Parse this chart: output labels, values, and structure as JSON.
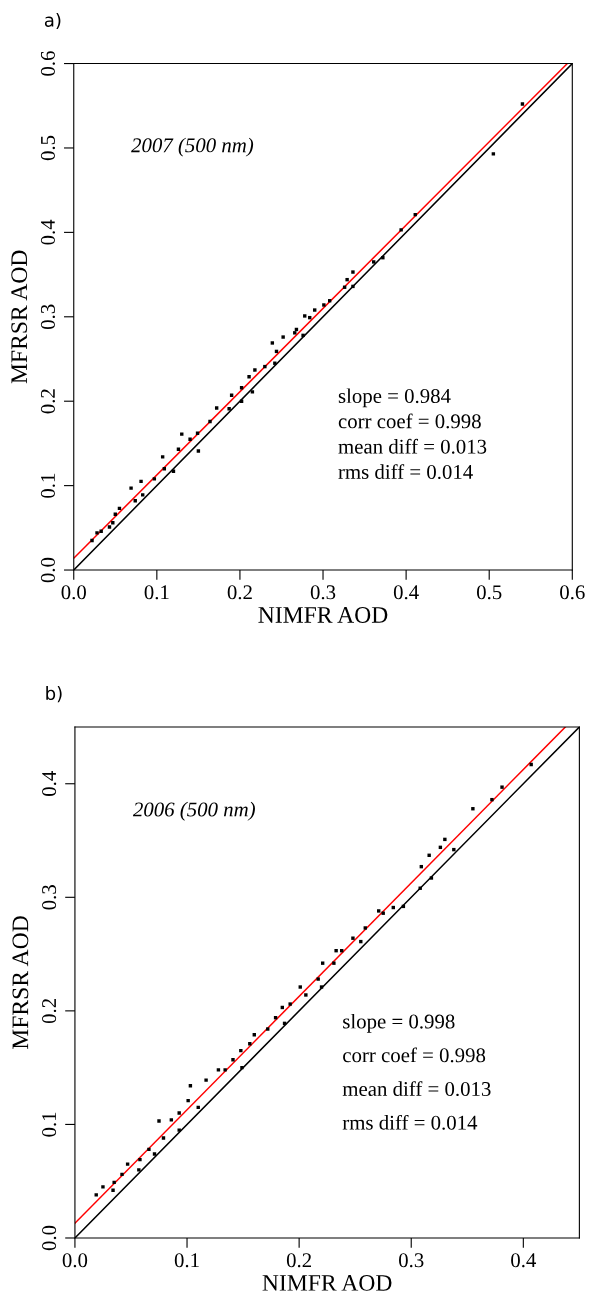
{
  "chart_data": [
    {
      "type": "scatter",
      "title": "a)",
      "xlabel": "NIMFR AOD",
      "ylabel": "MFRSR AOD",
      "xlim": [
        0,
        0.6
      ],
      "ylim": [
        0,
        0.6
      ],
      "xticks": [
        {
          "value": 0,
          "label": "0.0"
        },
        0.1,
        0.2,
        0.3,
        0.4,
        0.5,
        0.6
      ],
      "yticks": [
        {
          "value": 0,
          "label": "0.0"
        },
        0.1,
        0.2,
        0.3,
        0.4,
        0.5,
        0.6
      ],
      "grid": false,
      "legend": false,
      "annotations": [
        "2007 (500 nm)",
        "slope = 0.984",
        "corr coef = 0.998",
        "mean diff = 0.013",
        "rms diff = 0.014"
      ],
      "series": [
        {
          "color": "#000000",
          "marker": "square",
          "x": [
            0.54,
            0.505,
            0.411,
            0.394,
            0.372,
            0.361,
            0.336,
            0.329,
            0.336,
            0.326,
            0.308,
            0.301,
            0.29,
            0.284,
            0.278,
            0.276,
            0.268,
            0.266,
            0.252,
            0.239,
            0.244,
            0.242,
            0.23,
            0.218,
            0.211,
            0.215,
            0.202,
            0.19,
            0.202,
            0.187,
            0.172,
            0.164,
            0.149,
            0.14,
            0.13,
            0.15,
            0.126,
            0.12,
            0.107,
            0.109,
            0.097,
            0.081,
            0.069,
            0.083,
            0.074,
            0.055,
            0.05,
            0.047,
            0.043,
            0.033,
            0.022,
            0.028
          ],
          "values": [
            0.552,
            0.493,
            0.421,
            0.403,
            0.37,
            0.365,
            0.353,
            0.344,
            0.336,
            0.335,
            0.319,
            0.314,
            0.308,
            0.299,
            0.301,
            0.278,
            0.285,
            0.281,
            0.276,
            0.269,
            0.259,
            0.245,
            0.241,
            0.237,
            0.229,
            0.211,
            0.216,
            0.207,
            0.2,
            0.191,
            0.192,
            0.176,
            0.162,
            0.155,
            0.161,
            0.141,
            0.143,
            0.117,
            0.134,
            0.12,
            0.108,
            0.105,
            0.097,
            0.089,
            0.082,
            0.073,
            0.066,
            0.056,
            0.051,
            0.046,
            0.035,
            0.044
          ]
        },
        {
          "type": "line",
          "color": "#ff0000",
          "x": [
            0,
            0.594
          ],
          "values": [
            0.014,
            0.6
          ]
        },
        {
          "type": "line",
          "color": "#000000",
          "x": [
            0,
            0.6
          ],
          "values": [
            0,
            0.6
          ]
        }
      ]
    },
    {
      "type": "scatter",
      "title": "b)",
      "xlabel": "NIMFR AOD",
      "ylabel": "MFRSR AOD",
      "xlim": [
        0,
        0.45
      ],
      "ylim": [
        0,
        0.45
      ],
      "xticks": [
        {
          "value": 0,
          "label": "0.0"
        },
        0.1,
        0.2,
        0.3,
        0.4
      ],
      "yticks": [
        {
          "value": 0,
          "label": "0.0"
        },
        0.1,
        0.2,
        0.3,
        0.4
      ],
      "grid": false,
      "legend": false,
      "annotations": [
        "2006 (500 nm)",
        "slope = 0.998",
        "corr coef = 0.998",
        "mean diff = 0.013",
        "rms diff = 0.014"
      ],
      "series": [
        {
          "color": "#000000",
          "marker": "square",
          "x": [
            0.407,
            0.381,
            0.372,
            0.355,
            0.338,
            0.33,
            0.326,
            0.318,
            0.316,
            0.309,
            0.308,
            0.293,
            0.284,
            0.275,
            0.271,
            0.259,
            0.255,
            0.248,
            0.238,
            0.233,
            0.231,
            0.221,
            0.22,
            0.217,
            0.206,
            0.201,
            0.192,
            0.187,
            0.185,
            0.179,
            0.172,
            0.16,
            0.156,
            0.148,
            0.149,
            0.141,
            0.134,
            0.128,
            0.117,
            0.103,
            0.11,
            0.101,
            0.093,
            0.093,
            0.086,
            0.075,
            0.079,
            0.071,
            0.066,
            0.058,
            0.057,
            0.047,
            0.042,
            0.035,
            0.034,
            0.025,
            0.019
          ],
          "values": [
            0.417,
            0.397,
            0.386,
            0.378,
            0.342,
            0.351,
            0.344,
            0.317,
            0.337,
            0.327,
            0.308,
            0.292,
            0.291,
            0.286,
            0.288,
            0.273,
            0.261,
            0.264,
            0.253,
            0.253,
            0.242,
            0.242,
            0.221,
            0.228,
            0.214,
            0.221,
            0.206,
            0.189,
            0.203,
            0.194,
            0.184,
            0.179,
            0.171,
            0.165,
            0.15,
            0.157,
            0.148,
            0.148,
            0.139,
            0.134,
            0.115,
            0.121,
            0.11,
            0.095,
            0.104,
            0.103,
            0.088,
            0.074,
            0.078,
            0.069,
            0.06,
            0.065,
            0.056,
            0.049,
            0.042,
            0.045,
            0.038
          ]
        },
        {
          "type": "line",
          "color": "#ff0000",
          "x": [
            0,
            0.4375
          ],
          "values": [
            0.013,
            0.45
          ]
        },
        {
          "type": "line",
          "color": "#000000",
          "x": [
            0,
            0.45
          ],
          "values": [
            0,
            0.45
          ]
        }
      ]
    }
  ]
}
